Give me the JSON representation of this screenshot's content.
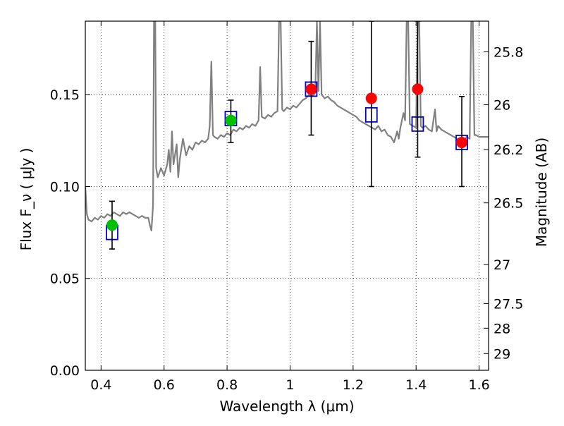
{
  "chart_data": {
    "type": "scatter",
    "xlabel": "Wavelength  λ (μm)",
    "ylabel": "Flux  F_ν  ( μJy )",
    "ylabel_right": "Magnitude (AB)",
    "xlim": [
      0.35,
      1.63
    ],
    "ylim": [
      0.0,
      0.19
    ],
    "grid": true,
    "x_ticks": [
      0.4,
      0.6,
      0.8,
      1.0,
      1.2,
      1.4,
      1.6
    ],
    "x_tick_labels": [
      "0.4",
      "0.6",
      "0.8",
      "1",
      "1.2",
      "1.4",
      "1.6"
    ],
    "y_ticks": [
      0.0,
      0.05,
      0.1,
      0.15
    ],
    "y_tick_labels": [
      "0.00",
      "0.05",
      "0.10",
      "0.15"
    ],
    "right_ticks": [
      {
        "label": "25.8",
        "flux": 0.1733
      },
      {
        "label": "26",
        "flux": 0.1445
      },
      {
        "label": "26.2",
        "flux": 0.1201
      },
      {
        "label": "26.5",
        "flux": 0.0911
      },
      {
        "label": "27",
        "flux": 0.0575
      },
      {
        "label": "27.5",
        "flux": 0.0363
      },
      {
        "label": "28",
        "flux": 0.0229
      },
      {
        "label": "29",
        "flux": 0.0091
      }
    ],
    "series": [
      {
        "kind": "spectrum",
        "color": "#808080",
        "points": [
          [
            0.35,
            0.1
          ],
          [
            0.355,
            0.085
          ],
          [
            0.36,
            0.082
          ],
          [
            0.37,
            0.081
          ],
          [
            0.38,
            0.083
          ],
          [
            0.39,
            0.082
          ],
          [
            0.4,
            0.084
          ],
          [
            0.41,
            0.083
          ],
          [
            0.42,
            0.085
          ],
          [
            0.43,
            0.084
          ],
          [
            0.44,
            0.086
          ],
          [
            0.45,
            0.085
          ],
          [
            0.46,
            0.084
          ],
          [
            0.47,
            0.086
          ],
          [
            0.48,
            0.085
          ],
          [
            0.49,
            0.086
          ],
          [
            0.5,
            0.085
          ],
          [
            0.51,
            0.084
          ],
          [
            0.52,
            0.083
          ],
          [
            0.53,
            0.084
          ],
          [
            0.54,
            0.083
          ],
          [
            0.55,
            0.083
          ],
          [
            0.555,
            0.079
          ],
          [
            0.56,
            0.076
          ],
          [
            0.565,
            0.09
          ],
          [
            0.568,
            0.19
          ],
          [
            0.572,
            0.19
          ],
          [
            0.575,
            0.11
          ],
          [
            0.58,
            0.105
          ],
          [
            0.59,
            0.11
          ],
          [
            0.6,
            0.106
          ],
          [
            0.61,
            0.112
          ],
          [
            0.615,
            0.12
          ],
          [
            0.62,
            0.108
          ],
          [
            0.625,
            0.13
          ],
          [
            0.63,
            0.112
          ],
          [
            0.64,
            0.123
          ],
          [
            0.645,
            0.105
          ],
          [
            0.65,
            0.115
          ],
          [
            0.66,
            0.126
          ],
          [
            0.67,
            0.117
          ],
          [
            0.68,
            0.122
          ],
          [
            0.69,
            0.12
          ],
          [
            0.7,
            0.124
          ],
          [
            0.71,
            0.123
          ],
          [
            0.72,
            0.125
          ],
          [
            0.73,
            0.124
          ],
          [
            0.74,
            0.126
          ],
          [
            0.745,
            0.133
          ],
          [
            0.75,
            0.168
          ],
          [
            0.755,
            0.128
          ],
          [
            0.76,
            0.127
          ],
          [
            0.77,
            0.126
          ],
          [
            0.78,
            0.128
          ],
          [
            0.79,
            0.127
          ],
          [
            0.8,
            0.129
          ],
          [
            0.81,
            0.128
          ],
          [
            0.82,
            0.131
          ],
          [
            0.83,
            0.13
          ],
          [
            0.84,
            0.132
          ],
          [
            0.85,
            0.131
          ],
          [
            0.86,
            0.133
          ],
          [
            0.87,
            0.132
          ],
          [
            0.88,
            0.134
          ],
          [
            0.89,
            0.133
          ],
          [
            0.9,
            0.136
          ],
          [
            0.905,
            0.165
          ],
          [
            0.91,
            0.138
          ],
          [
            0.92,
            0.137
          ],
          [
            0.93,
            0.139
          ],
          [
            0.94,
            0.138
          ],
          [
            0.95,
            0.14
          ],
          [
            0.96,
            0.141
          ],
          [
            0.965,
            0.19
          ],
          [
            0.97,
            0.19
          ],
          [
            0.975,
            0.142
          ],
          [
            0.98,
            0.141
          ],
          [
            0.99,
            0.143
          ],
          [
            1.0,
            0.142
          ],
          [
            1.01,
            0.144
          ],
          [
            1.02,
            0.143
          ],
          [
            1.03,
            0.145
          ],
          [
            1.04,
            0.147
          ],
          [
            1.05,
            0.148
          ],
          [
            1.06,
            0.15
          ],
          [
            1.07,
            0.149
          ],
          [
            1.08,
            0.151
          ],
          [
            1.085,
            0.19
          ],
          [
            1.09,
            0.152
          ],
          [
            1.095,
            0.19
          ],
          [
            1.1,
            0.15
          ],
          [
            1.11,
            0.148
          ],
          [
            1.12,
            0.149
          ],
          [
            1.13,
            0.147
          ],
          [
            1.14,
            0.146
          ],
          [
            1.15,
            0.144
          ],
          [
            1.16,
            0.143
          ],
          [
            1.17,
            0.142
          ],
          [
            1.18,
            0.141
          ],
          [
            1.19,
            0.14
          ],
          [
            1.2,
            0.139
          ],
          [
            1.21,
            0.138
          ],
          [
            1.22,
            0.136
          ],
          [
            1.23,
            0.135
          ],
          [
            1.24,
            0.134
          ],
          [
            1.25,
            0.133
          ],
          [
            1.26,
            0.132
          ],
          [
            1.27,
            0.131
          ],
          [
            1.28,
            0.133
          ],
          [
            1.29,
            0.13
          ],
          [
            1.3,
            0.131
          ],
          [
            1.31,
            0.128
          ],
          [
            1.32,
            0.127
          ],
          [
            1.33,
            0.124
          ],
          [
            1.34,
            0.13
          ],
          [
            1.345,
            0.126
          ],
          [
            1.35,
            0.132
          ],
          [
            1.36,
            0.14
          ],
          [
            1.365,
            0.136
          ],
          [
            1.37,
            0.19
          ],
          [
            1.375,
            0.19
          ],
          [
            1.38,
            0.134
          ],
          [
            1.39,
            0.133
          ],
          [
            1.4,
            0.132
          ],
          [
            1.405,
            0.19
          ],
          [
            1.41,
            0.19
          ],
          [
            1.415,
            0.133
          ],
          [
            1.42,
            0.132
          ],
          [
            1.43,
            0.133
          ],
          [
            1.44,
            0.131
          ],
          [
            1.45,
            0.13
          ],
          [
            1.46,
            0.142
          ],
          [
            1.465,
            0.13
          ],
          [
            1.47,
            0.133
          ],
          [
            1.48,
            0.131
          ],
          [
            1.49,
            0.13
          ],
          [
            1.5,
            0.129
          ],
          [
            1.51,
            0.128
          ],
          [
            1.52,
            0.127
          ],
          [
            1.53,
            0.126
          ],
          [
            1.54,
            0.125
          ],
          [
            1.55,
            0.126
          ],
          [
            1.555,
            0.125
          ],
          [
            1.56,
            0.127
          ],
          [
            1.57,
            0.126
          ],
          [
            1.575,
            0.19
          ],
          [
            1.58,
            0.19
          ],
          [
            1.585,
            0.128
          ],
          [
            1.59,
            0.128
          ],
          [
            1.6,
            0.127
          ],
          [
            1.61,
            0.127
          ],
          [
            1.62,
            0.127
          ],
          [
            1.63,
            0.127
          ]
        ]
      },
      {
        "kind": "boxes",
        "color": "#0000cc",
        "x": [
          0.435,
          0.812,
          1.067,
          1.258,
          1.405,
          1.545
        ],
        "values": [
          0.075,
          0.137,
          0.153,
          0.139,
          0.134,
          0.124
        ]
      },
      {
        "kind": "errorbars",
        "color": "#000000",
        "x": [
          0.435,
          0.812,
          1.067,
          1.258,
          1.405,
          1.545
        ],
        "low": [
          0.066,
          0.124,
          0.128,
          0.1,
          0.116,
          0.1
        ],
        "high": [
          0.092,
          0.147,
          0.179,
          0.19,
          0.19,
          0.149
        ]
      },
      {
        "kind": "markers",
        "color": "#00c000",
        "x": [
          0.435,
          0.812
        ],
        "values": [
          0.079,
          0.136
        ]
      },
      {
        "kind": "markers",
        "color": "#ff0000",
        "x": [
          1.067,
          1.258,
          1.405,
          1.545
        ],
        "values": [
          0.153,
          0.148,
          0.153,
          0.124
        ]
      }
    ]
  }
}
